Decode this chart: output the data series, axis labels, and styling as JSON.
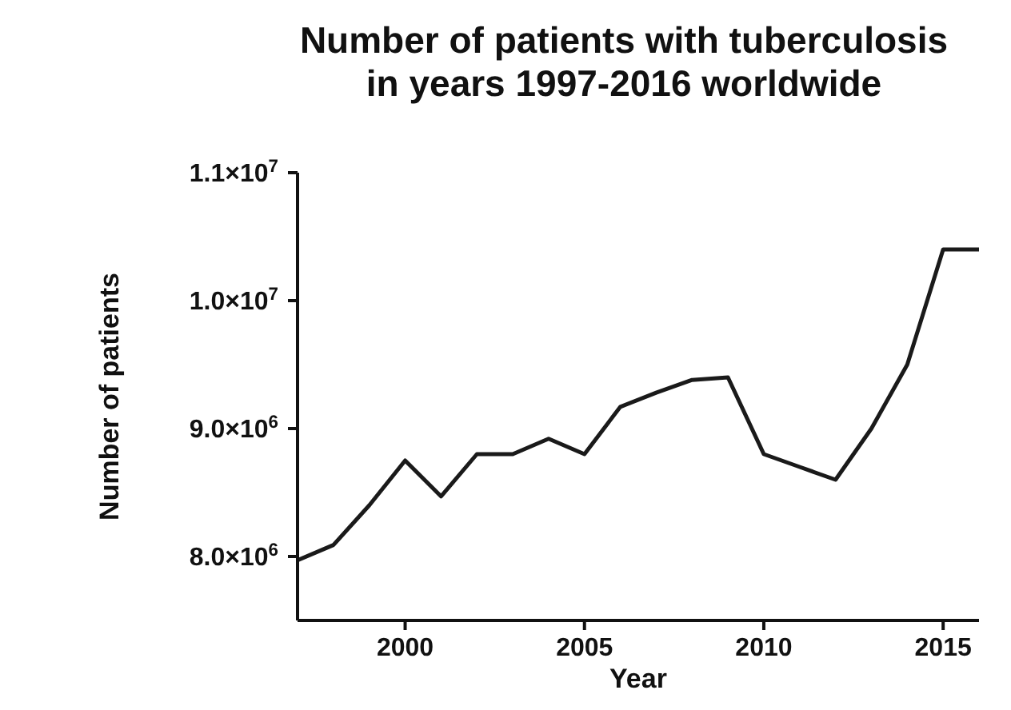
{
  "chart_data": {
    "type": "line",
    "title": "Number of patients with tuberculosis\nin years 1997-2016 worldwide",
    "xlabel": "Year",
    "ylabel": "Number of patients",
    "x": [
      1997,
      1998,
      1999,
      2000,
      2001,
      2002,
      2003,
      2004,
      2005,
      2006,
      2007,
      2008,
      2009,
      2010,
      2011,
      2012,
      2013,
      2014,
      2015,
      2016
    ],
    "series": [
      {
        "color": "#1a1a1a",
        "values": [
          7970000,
          8090000,
          8400000,
          8750000,
          8470000,
          8800000,
          8800000,
          8920000,
          8800000,
          9170000,
          9280000,
          9380000,
          9400000,
          8800000,
          8700000,
          8600000,
          9000000,
          9500000,
          10400000,
          10400000
        ]
      }
    ],
    "xlim": [
      1997,
      2016
    ],
    "xticks": [
      2000,
      2005,
      2010,
      2015
    ],
    "ylim": [
      7500000,
      11000000
    ],
    "yticks": [
      {
        "value": 8000000,
        "label": "8.0×10$^{6}$"
      },
      {
        "value": 9000000,
        "label": "9.0×10$^{6}$"
      },
      {
        "value": 10000000,
        "label": "1.0×10$^{7}$"
      },
      {
        "value": 11000000,
        "label": "1.1×10$^{7}$"
      }
    ],
    "grid": false,
    "legend": false,
    "marker": "none",
    "line_style": "solid"
  }
}
